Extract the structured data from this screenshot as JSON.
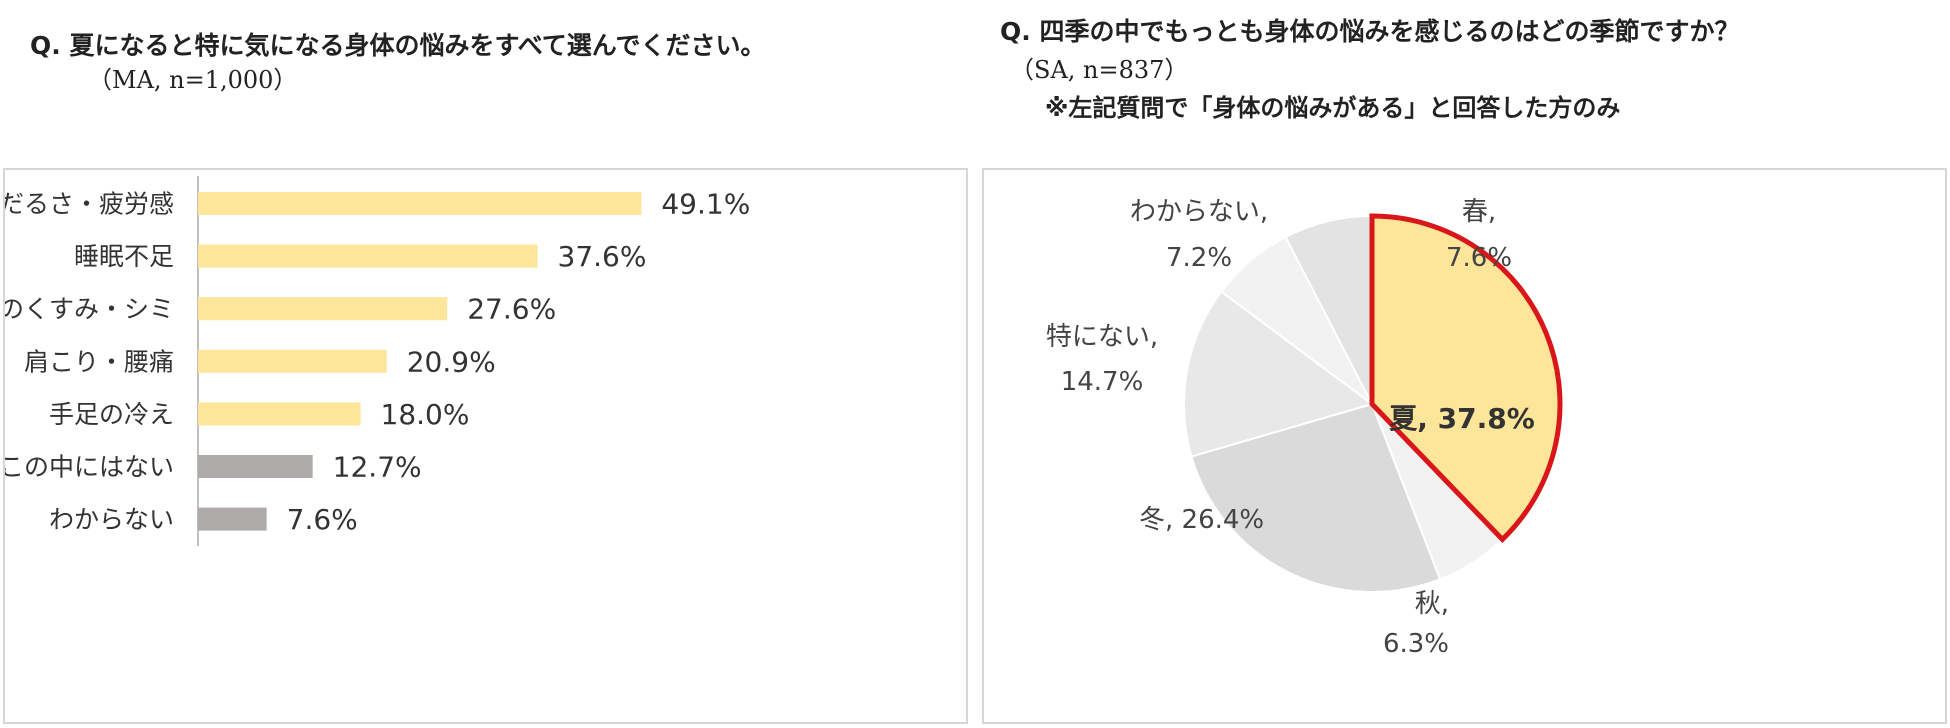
{
  "left": {
    "question": "Q. 夏になると特に気になる身体の悩みをすべて選んでください。",
    "sample": "（MA, n=1,000）"
  },
  "right": {
    "question": "Q. 四季の中でもっとも身体の悩みを感じるのはどの季節ですか？",
    "sample": "（SA, n=837）",
    "note": "※左記質問で「身体の悩みがある」と回答した方のみ"
  },
  "chart_data": [
    {
      "type": "bar",
      "orientation": "horizontal",
      "categories": [
        "だるさ・疲労感",
        "睡眠不足",
        "肌のくすみ・シミ",
        "肩こり・腰痛",
        "手足の冷え",
        "この中にはない",
        "わからない"
      ],
      "values": [
        49.1,
        37.6,
        27.6,
        20.9,
        18.0,
        12.7,
        7.6
      ],
      "value_labels": [
        "49.1%",
        "37.6%",
        "27.6%",
        "20.9%",
        "18.0%",
        "12.7%",
        "7.6%"
      ],
      "bar_colors": [
        "#fde59a",
        "#fde59a",
        "#fde59a",
        "#fde59a",
        "#fde59a",
        "#aeaaaa",
        "#aeaaaa"
      ],
      "grid": false,
      "xlim": [
        0,
        100
      ]
    },
    {
      "type": "pie",
      "slices": [
        {
          "label": "夏",
          "value": 37.8,
          "text": "夏, 37.8%",
          "color": "#fde59a",
          "highlight": true
        },
        {
          "label": "秋",
          "value": 6.3,
          "text_line1": "秋,",
          "text_line2": "6.3%",
          "color": "#f2f2f2"
        },
        {
          "label": "冬",
          "value": 26.4,
          "text": "冬, 26.4%",
          "color": "#dadada"
        },
        {
          "label": "特にない",
          "value": 14.7,
          "text_line1": "特にない,",
          "text_line2": "14.7%",
          "color": "#e8e8e8"
        },
        {
          "label": "わからない",
          "value": 7.2,
          "text_line1": "わからない,",
          "text_line2": "7.2%",
          "color": "#f2f2f2"
        },
        {
          "label": "春",
          "value": 7.6,
          "text_line1": "春,",
          "text_line2": "7.6%",
          "color": "#e3e3e3"
        }
      ],
      "highlight_border_color": "#d9161a"
    }
  ]
}
